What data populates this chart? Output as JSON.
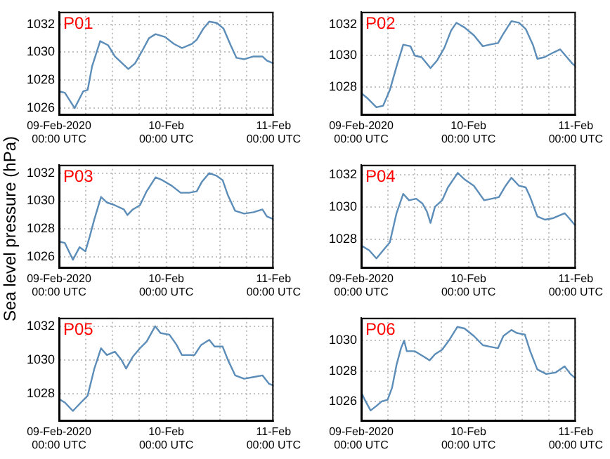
{
  "chart_data": [
    {
      "type": "line",
      "title": "P01",
      "ylabel": "Sea level pressure (hPa)",
      "color": "#5b8db8",
      "grid": true,
      "x": [
        "2020-02-09T00:00",
        "2020-02-09T01:18",
        "2020-02-09T03:30",
        "2020-02-09T05:24",
        "2020-02-09T06:24",
        "2020-02-09T07:24",
        "2020-02-09T09:12",
        "2020-02-09T11:00",
        "2020-02-09T12:30",
        "2020-02-09T14:30",
        "2020-02-09T15:30",
        "2020-02-09T17:00",
        "2020-02-09T18:36",
        "2020-02-09T20:06",
        "2020-02-09T21:36",
        "2020-02-09T23:42",
        "2020-02-10T01:42",
        "2020-02-10T03:30",
        "2020-02-10T05:42",
        "2020-02-10T06:48",
        "2020-02-10T08:18",
        "2020-02-10T09:36",
        "2020-02-10T11:18",
        "2020-02-10T12:48",
        "2020-02-10T14:24",
        "2020-02-10T15:42",
        "2020-02-10T17:24",
        "2020-02-10T19:30",
        "2020-02-10T21:30",
        "2020-02-10T22:30",
        "2020-02-11T00:00"
      ],
      "values": [
        1027.2,
        1027.1,
        1026.0,
        1027.2,
        1027.3,
        1029.0,
        1030.8,
        1030.5,
        1029.7,
        1029.1,
        1028.8,
        1029.2,
        1030.1,
        1031.0,
        1031.3,
        1031.1,
        1030.6,
        1030.3,
        1030.6,
        1030.9,
        1031.7,
        1032.2,
        1032.1,
        1031.7,
        1030.5,
        1029.6,
        1029.5,
        1029.7,
        1029.7,
        1029.4,
        1029.2
      ],
      "xlim": [
        "2020-02-09T00:00",
        "2020-02-11T00:00"
      ],
      "xticks": [
        {
          "value": "2020-02-09T00:00",
          "label": "09-Feb-2020\n00:00 UTC"
        },
        {
          "value": "2020-02-09T06:00",
          "label": null
        },
        {
          "value": "2020-02-09T12:00",
          "label": null
        },
        {
          "value": "2020-02-09T18:00",
          "label": null
        },
        {
          "value": "2020-02-10T00:00",
          "label": "10-Feb\n00:00 UTC"
        },
        {
          "value": "2020-02-10T06:00",
          "label": null
        },
        {
          "value": "2020-02-10T12:00",
          "label": null
        },
        {
          "value": "2020-02-10T18:00",
          "label": null
        },
        {
          "value": "2020-02-11T00:00",
          "label": "11-Feb\n00:00 UTC"
        }
      ],
      "ylim": [
        1025.5,
        1032.9
      ],
      "yticks": [
        1026,
        1028,
        1030,
        1032
      ]
    },
    {
      "type": "line",
      "title": "P02",
      "color": "#5b8db8",
      "grid": true,
      "x": [
        "2020-02-09T00:00",
        "2020-02-09T01:18",
        "2020-02-09T03:24",
        "2020-02-09T04:54",
        "2020-02-09T06:24",
        "2020-02-09T07:54",
        "2020-02-09T09:24",
        "2020-02-09T11:00",
        "2020-02-09T12:00",
        "2020-02-09T13:30",
        "2020-02-09T15:30",
        "2020-02-09T17:00",
        "2020-02-09T18:36",
        "2020-02-09T20:06",
        "2020-02-09T21:18",
        "2020-02-09T23:06",
        "2020-02-10T01:12",
        "2020-02-10T03:12",
        "2020-02-10T04:42",
        "2020-02-10T06:36",
        "2020-02-10T07:48",
        "2020-02-10T09:36",
        "2020-02-10T11:18",
        "2020-02-10T12:48",
        "2020-02-10T14:24",
        "2020-02-10T15:24",
        "2020-02-10T17:00",
        "2020-02-10T19:00",
        "2020-02-10T20:30",
        "2020-02-10T22:00",
        "2020-02-10T23:12",
        "2020-02-11T00:00"
      ],
      "values": [
        1027.6,
        1027.3,
        1026.7,
        1026.8,
        1027.8,
        1029.3,
        1030.7,
        1030.6,
        1030.0,
        1029.9,
        1029.2,
        1029.7,
        1030.5,
        1031.6,
        1032.1,
        1031.8,
        1031.3,
        1030.6,
        1030.7,
        1030.8,
        1031.4,
        1032.2,
        1032.1,
        1031.7,
        1030.7,
        1029.8,
        1029.9,
        1030.2,
        1030.4,
        1029.9,
        1029.5,
        1029.3
      ],
      "xlim": [
        "2020-02-09T00:00",
        "2020-02-11T00:00"
      ],
      "xticks": [
        {
          "value": "2020-02-09T00:00",
          "label": "09-Feb-2020\n00:00 UTC"
        },
        {
          "value": "2020-02-09T06:00",
          "label": null
        },
        {
          "value": "2020-02-09T12:00",
          "label": null
        },
        {
          "value": "2020-02-09T18:00",
          "label": null
        },
        {
          "value": "2020-02-10T00:00",
          "label": "10-Feb\n00:00 UTC"
        },
        {
          "value": "2020-02-10T06:00",
          "label": null
        },
        {
          "value": "2020-02-10T12:00",
          "label": null
        },
        {
          "value": "2020-02-10T18:00",
          "label": null
        },
        {
          "value": "2020-02-11T00:00",
          "label": "11-Feb\n00:00 UTC"
        }
      ],
      "ylim": [
        1026.2,
        1032.8
      ],
      "yticks": [
        1028,
        1030,
        1032
      ]
    },
    {
      "type": "line",
      "title": "P03",
      "color": "#5b8db8",
      "grid": true,
      "x": [
        "2020-02-09T00:00",
        "2020-02-09T01:18",
        "2020-02-09T03:06",
        "2020-02-09T04:36",
        "2020-02-09T05:54",
        "2020-02-09T06:54",
        "2020-02-09T07:54",
        "2020-02-09T09:24",
        "2020-02-09T10:42",
        "2020-02-09T12:30",
        "2020-02-09T14:30",
        "2020-02-09T15:18",
        "2020-02-09T16:30",
        "2020-02-09T18:06",
        "2020-02-09T19:36",
        "2020-02-09T21:36",
        "2020-02-09T23:06",
        "2020-02-10T01:12",
        "2020-02-10T03:12",
        "2020-02-10T05:06",
        "2020-02-10T06:48",
        "2020-02-10T08:00",
        "2020-02-10T09:36",
        "2020-02-10T11:18",
        "2020-02-10T12:36",
        "2020-02-10T13:48",
        "2020-02-10T15:24",
        "2020-02-10T17:24",
        "2020-02-10T19:30",
        "2020-02-10T21:30",
        "2020-02-10T22:30",
        "2020-02-11T00:00"
      ],
      "values": [
        1027.1,
        1027.0,
        1025.8,
        1026.7,
        1026.4,
        1027.5,
        1028.7,
        1030.3,
        1029.9,
        1029.7,
        1029.4,
        1029.0,
        1029.4,
        1029.7,
        1030.7,
        1031.7,
        1031.5,
        1031.1,
        1030.6,
        1030.6,
        1030.7,
        1031.4,
        1032.0,
        1031.8,
        1031.5,
        1030.4,
        1029.3,
        1029.1,
        1029.2,
        1029.4,
        1028.9,
        1028.7
      ],
      "xlim": [
        "2020-02-09T00:00",
        "2020-02-11T00:00"
      ],
      "xticks": [
        {
          "value": "2020-02-09T00:00",
          "label": "09-Feb-2020\n00:00 UTC"
        },
        {
          "value": "2020-02-09T06:00",
          "label": null
        },
        {
          "value": "2020-02-09T12:00",
          "label": null
        },
        {
          "value": "2020-02-09T18:00",
          "label": null
        },
        {
          "value": "2020-02-10T00:00",
          "label": "10-Feb\n00:00 UTC"
        },
        {
          "value": "2020-02-10T06:00",
          "label": null
        },
        {
          "value": "2020-02-10T12:00",
          "label": null
        },
        {
          "value": "2020-02-10T18:00",
          "label": null
        },
        {
          "value": "2020-02-11T00:00",
          "label": "11-Feb\n00:00 UTC"
        }
      ],
      "ylim": [
        1025.2,
        1032.6
      ],
      "yticks": [
        1026,
        1028,
        1030,
        1032
      ]
    },
    {
      "type": "line",
      "title": "P04",
      "color": "#5b8db8",
      "grid": true,
      "x": [
        "2020-02-09T00:00",
        "2020-02-09T01:48",
        "2020-02-09T03:24",
        "2020-02-09T04:54",
        "2020-02-09T06:24",
        "2020-02-09T07:54",
        "2020-02-09T09:24",
        "2020-02-09T10:42",
        "2020-02-09T12:18",
        "2020-02-09T13:42",
        "2020-02-09T14:42",
        "2020-02-09T15:30",
        "2020-02-09T16:30",
        "2020-02-09T18:06",
        "2020-02-09T19:24",
        "2020-02-09T21:36",
        "2020-02-09T23:06",
        "2020-02-10T01:12",
        "2020-02-10T03:30",
        "2020-02-10T05:12",
        "2020-02-10T06:48",
        "2020-02-10T08:18",
        "2020-02-10T09:36",
        "2020-02-10T11:18",
        "2020-02-10T12:48",
        "2020-02-10T13:48",
        "2020-02-10T15:24",
        "2020-02-10T17:06",
        "2020-02-10T19:00",
        "2020-02-10T21:30",
        "2020-02-10T22:30",
        "2020-02-11T00:00"
      ],
      "values": [
        1027.6,
        1027.3,
        1026.8,
        1027.3,
        1027.8,
        1029.6,
        1030.8,
        1030.4,
        1030.5,
        1030.2,
        1029.7,
        1029.0,
        1030.0,
        1030.4,
        1031.2,
        1032.1,
        1031.7,
        1031.3,
        1030.4,
        1030.5,
        1030.6,
        1031.3,
        1031.8,
        1031.3,
        1031.2,
        1030.6,
        1029.4,
        1029.2,
        1029.3,
        1029.6,
        1029.3,
        1028.8
      ],
      "xlim": [
        "2020-02-09T00:00",
        "2020-02-11T00:00"
      ],
      "xticks": [
        {
          "value": "2020-02-09T00:00",
          "label": "09-Feb-2020\n00:00 UTC"
        },
        {
          "value": "2020-02-09T06:00",
          "label": null
        },
        {
          "value": "2020-02-09T12:00",
          "label": null
        },
        {
          "value": "2020-02-09T18:00",
          "label": null
        },
        {
          "value": "2020-02-10T00:00",
          "label": "10-Feb\n00:00 UTC"
        },
        {
          "value": "2020-02-10T06:00",
          "label": null
        },
        {
          "value": "2020-02-10T12:00",
          "label": null
        },
        {
          "value": "2020-02-10T18:00",
          "label": null
        },
        {
          "value": "2020-02-11T00:00",
          "label": "11-Feb\n00:00 UTC"
        }
      ],
      "ylim": [
        1026.2,
        1032.6
      ],
      "yticks": [
        1028,
        1030,
        1032
      ]
    },
    {
      "type": "line",
      "title": "P05",
      "color": "#5b8db8",
      "grid": true,
      "x": [
        "2020-02-09T00:00",
        "2020-02-09T01:18",
        "2020-02-09T03:06",
        "2020-02-09T04:54",
        "2020-02-09T06:24",
        "2020-02-09T07:54",
        "2020-02-09T09:24",
        "2020-02-09T10:42",
        "2020-02-09T12:30",
        "2020-02-09T14:00",
        "2020-02-09T15:00",
        "2020-02-09T16:30",
        "2020-02-09T18:06",
        "2020-02-09T19:36",
        "2020-02-09T21:30",
        "2020-02-09T22:42",
        "2020-02-10T00:42",
        "2020-02-10T02:18",
        "2020-02-10T03:30",
        "2020-02-10T06:18",
        "2020-02-10T07:48",
        "2020-02-10T09:36",
        "2020-02-10T10:48",
        "2020-02-10T12:36",
        "2020-02-10T13:48",
        "2020-02-10T15:24",
        "2020-02-10T17:24",
        "2020-02-10T19:30",
        "2020-02-10T21:30",
        "2020-02-10T23:00",
        "2020-02-11T00:00"
      ],
      "values": [
        1027.7,
        1027.5,
        1027.0,
        1027.5,
        1027.9,
        1029.5,
        1030.7,
        1030.3,
        1030.5,
        1030.0,
        1029.5,
        1030.2,
        1030.7,
        1031.1,
        1032.0,
        1031.6,
        1031.5,
        1030.9,
        1030.3,
        1030.3,
        1030.9,
        1031.2,
        1030.8,
        1030.8,
        1030.0,
        1029.1,
        1028.9,
        1029.0,
        1029.1,
        1028.6,
        1028.5
      ],
      "xlim": [
        "2020-02-09T00:00",
        "2020-02-11T00:00"
      ],
      "xticks": [
        {
          "value": "2020-02-09T00:00",
          "label": "09-Feb-2020\n00:00 UTC"
        },
        {
          "value": "2020-02-09T06:00",
          "label": null
        },
        {
          "value": "2020-02-09T12:00",
          "label": null
        },
        {
          "value": "2020-02-09T18:00",
          "label": null
        },
        {
          "value": "2020-02-10T00:00",
          "label": "10-Feb\n00:00 UTC"
        },
        {
          "value": "2020-02-10T06:00",
          "label": null
        },
        {
          "value": "2020-02-10T12:00",
          "label": null
        },
        {
          "value": "2020-02-10T18:00",
          "label": null
        },
        {
          "value": "2020-02-11T00:00",
          "label": "11-Feb\n00:00 UTC"
        }
      ],
      "ylim": [
        1026.4,
        1032.5
      ],
      "yticks": [
        1028,
        1030,
        1032
      ]
    },
    {
      "type": "line",
      "title": "P06",
      "color": "#5b8db8",
      "grid": true,
      "x": [
        "2020-02-09T00:00",
        "2020-02-09T00:48",
        "2020-02-09T02:06",
        "2020-02-09T03:24",
        "2020-02-09T04:36",
        "2020-02-09T05:54",
        "2020-02-09T06:54",
        "2020-02-09T07:54",
        "2020-02-09T08:54",
        "2020-02-09T09:36",
        "2020-02-09T10:12",
        "2020-02-09T12:00",
        "2020-02-09T13:42",
        "2020-02-09T15:18",
        "2020-02-09T16:30",
        "2020-02-09T18:06",
        "2020-02-09T19:36",
        "2020-02-09T21:30",
        "2020-02-09T23:06",
        "2020-02-10T01:12",
        "2020-02-10T03:12",
        "2020-02-10T04:42",
        "2020-02-10T06:36",
        "2020-02-10T07:48",
        "2020-02-10T09:36",
        "2020-02-10T10:48",
        "2020-02-10T12:36",
        "2020-02-10T13:48",
        "2020-02-10T15:24",
        "2020-02-10T17:24",
        "2020-02-10T19:30",
        "2020-02-10T21:30",
        "2020-02-10T22:48",
        "2020-02-11T00:00"
      ],
      "values": [
        1026.6,
        1026.1,
        1025.4,
        1025.7,
        1026.0,
        1026.1,
        1026.9,
        1028.4,
        1029.5,
        1030.0,
        1029.3,
        1029.3,
        1029.0,
        1028.7,
        1029.1,
        1029.4,
        1030.0,
        1030.9,
        1030.8,
        1030.3,
        1029.7,
        1029.6,
        1029.5,
        1030.3,
        1030.7,
        1030.5,
        1030.4,
        1029.3,
        1028.1,
        1027.8,
        1027.9,
        1028.3,
        1027.8,
        1027.5
      ],
      "xlim": [
        "2020-02-09T00:00",
        "2020-02-11T00:00"
      ],
      "xticks": [
        {
          "value": "2020-02-09T00:00",
          "label": "09-Feb-2020\n00:00 UTC"
        },
        {
          "value": "2020-02-09T06:00",
          "label": null
        },
        {
          "value": "2020-02-09T12:00",
          "label": null
        },
        {
          "value": "2020-02-09T18:00",
          "label": null
        },
        {
          "value": "2020-02-10T00:00",
          "label": "10-Feb\n00:00 UTC"
        },
        {
          "value": "2020-02-10T06:00",
          "label": null
        },
        {
          "value": "2020-02-10T12:00",
          "label": null
        },
        {
          "value": "2020-02-10T18:00",
          "label": null
        },
        {
          "value": "2020-02-11T00:00",
          "label": "11-Feb\n00:00 UTC"
        }
      ],
      "ylim": [
        1024.7,
        1031.5
      ],
      "yticks": [
        1026,
        1028,
        1030
      ]
    }
  ]
}
